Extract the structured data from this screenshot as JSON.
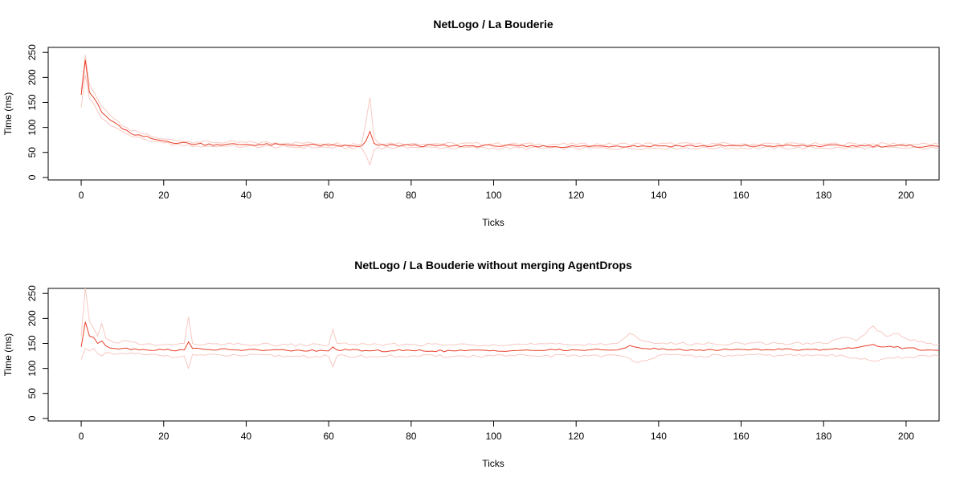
{
  "colors": {
    "mean_line": "#e8402a",
    "band_lines": "#f8c9c2",
    "axis": "#000000",
    "background": "#ffffff"
  },
  "chart_data": [
    {
      "type": "line",
      "title": "NetLogo / La Bouderie",
      "xlabel": "Ticks",
      "ylabel": "Time (ms)",
      "xlim": [
        -8,
        208
      ],
      "ylim": [
        -5,
        260
      ],
      "xticks": [
        0,
        20,
        40,
        60,
        80,
        100,
        120,
        140,
        160,
        180,
        200
      ],
      "yticks": [
        0,
        50,
        100,
        150,
        200,
        250
      ],
      "grid": false,
      "x_start": 0,
      "x_end": 208,
      "series": [
        {
          "role": "mean",
          "anchors": [
            [
              0,
              165
            ],
            [
              1,
              235
            ],
            [
              2,
              170
            ],
            [
              3,
              160
            ],
            [
              5,
              130
            ],
            [
              7,
              115
            ],
            [
              9,
              105
            ],
            [
              10,
              97
            ],
            [
              12,
              88
            ],
            [
              15,
              82
            ],
            [
              18,
              76
            ],
            [
              20,
              73
            ],
            [
              24,
              69
            ],
            [
              28,
              67
            ],
            [
              35,
              66
            ],
            [
              40,
              66
            ],
            [
              50,
              65
            ],
            [
              60,
              64
            ],
            [
              65,
              63
            ],
            [
              68,
              63
            ],
            [
              69,
              72
            ],
            [
              70,
              92
            ],
            [
              71,
              68
            ],
            [
              72,
              64
            ],
            [
              80,
              64
            ],
            [
              90,
              63
            ],
            [
              100,
              63
            ],
            [
              110,
              62
            ],
            [
              120,
              62
            ],
            [
              130,
              63
            ],
            [
              140,
              63
            ],
            [
              150,
              63
            ],
            [
              160,
              63
            ],
            [
              170,
              63
            ],
            [
              180,
              63
            ],
            [
              190,
              63
            ],
            [
              200,
              63
            ],
            [
              205,
              62
            ],
            [
              208,
              62
            ]
          ],
          "noise": 2.5
        },
        {
          "role": "upper",
          "anchors": [
            [
              0,
              175
            ],
            [
              1,
              245
            ],
            [
              2,
              185
            ],
            [
              3,
              172
            ],
            [
              5,
              142
            ],
            [
              7,
              125
            ],
            [
              9,
              112
            ],
            [
              10,
              103
            ],
            [
              12,
              93
            ],
            [
              15,
              87
            ],
            [
              18,
              80
            ],
            [
              20,
              77
            ],
            [
              24,
              73
            ],
            [
              28,
              71
            ],
            [
              35,
              70
            ],
            [
              40,
              70
            ],
            [
              50,
              69
            ],
            [
              60,
              68
            ],
            [
              68,
              67
            ],
            [
              69,
              110
            ],
            [
              70,
              160
            ],
            [
              71,
              80
            ],
            [
              72,
              69
            ],
            [
              80,
              68
            ],
            [
              100,
              67
            ],
            [
              120,
              66
            ],
            [
              140,
              67
            ],
            [
              160,
              67
            ],
            [
              180,
              67
            ],
            [
              200,
              67
            ],
            [
              208,
              66
            ]
          ],
          "noise": 3
        },
        {
          "role": "lower",
          "anchors": [
            [
              0,
              140
            ],
            [
              1,
              205
            ],
            [
              2,
              158
            ],
            [
              3,
              148
            ],
            [
              5,
              118
            ],
            [
              7,
              104
            ],
            [
              9,
              97
            ],
            [
              10,
              91
            ],
            [
              12,
              83
            ],
            [
              15,
              77
            ],
            [
              18,
              72
            ],
            [
              20,
              69
            ],
            [
              24,
              65
            ],
            [
              28,
              63
            ],
            [
              35,
              62
            ],
            [
              40,
              62
            ],
            [
              50,
              61
            ],
            [
              60,
              60
            ],
            [
              68,
              59
            ],
            [
              69,
              45
            ],
            [
              70,
              25
            ],
            [
              71,
              55
            ],
            [
              72,
              60
            ],
            [
              80,
              60
            ],
            [
              100,
              59
            ],
            [
              120,
              58
            ],
            [
              140,
              59
            ],
            [
              160,
              59
            ],
            [
              180,
              59
            ],
            [
              200,
              59
            ],
            [
              208,
              58
            ]
          ],
          "noise": 3
        }
      ]
    },
    {
      "type": "line",
      "title": "NetLogo / La Bouderie without merging AgentDrops",
      "xlabel": "Ticks",
      "ylabel": "Time (ms)",
      "xlim": [
        -8,
        208
      ],
      "ylim": [
        -5,
        260
      ],
      "xticks": [
        0,
        20,
        40,
        60,
        80,
        100,
        120,
        140,
        160,
        180,
        200
      ],
      "yticks": [
        0,
        50,
        100,
        150,
        200,
        250
      ],
      "grid": false,
      "x_start": 0,
      "x_end": 208,
      "series": [
        {
          "role": "mean",
          "anchors": [
            [
              0,
              143
            ],
            [
              1,
              193
            ],
            [
              2,
              165
            ],
            [
              3,
              162
            ],
            [
              4,
              150
            ],
            [
              5,
              155
            ],
            [
              6,
              145
            ],
            [
              8,
              140
            ],
            [
              10,
              140
            ],
            [
              15,
              138
            ],
            [
              20,
              137
            ],
            [
              25,
              137
            ],
            [
              26,
              153
            ],
            [
              27,
              140
            ],
            [
              30,
              138
            ],
            [
              40,
              137
            ],
            [
              50,
              136
            ],
            [
              60,
              135
            ],
            [
              61,
              143
            ],
            [
              62,
              137
            ],
            [
              70,
              135
            ],
            [
              80,
              136
            ],
            [
              90,
              135
            ],
            [
              100,
              136
            ],
            [
              110,
              136
            ],
            [
              120,
              137
            ],
            [
              130,
              137
            ],
            [
              133,
              146
            ],
            [
              135,
              142
            ],
            [
              140,
              138
            ],
            [
              150,
              137
            ],
            [
              160,
              138
            ],
            [
              170,
              138
            ],
            [
              180,
              138
            ],
            [
              185,
              140
            ],
            [
              190,
              145
            ],
            [
              192,
              148
            ],
            [
              195,
              143
            ],
            [
              200,
              141
            ],
            [
              205,
              137
            ],
            [
              208,
              136
            ]
          ],
          "noise": 2
        },
        {
          "role": "upper",
          "anchors": [
            [
              0,
              165
            ],
            [
              1,
              262
            ],
            [
              2,
              195
            ],
            [
              3,
              180
            ],
            [
              4,
              165
            ],
            [
              5,
              190
            ],
            [
              6,
              160
            ],
            [
              8,
              152
            ],
            [
              10,
              155
            ],
            [
              15,
              148
            ],
            [
              20,
              147
            ],
            [
              25,
              150
            ],
            [
              26,
              203
            ],
            [
              27,
              150
            ],
            [
              30,
              148
            ],
            [
              40,
              148
            ],
            [
              50,
              147
            ],
            [
              60,
              147
            ],
            [
              61,
              178
            ],
            [
              62,
              150
            ],
            [
              70,
              147
            ],
            [
              80,
              148
            ],
            [
              90,
              147
            ],
            [
              100,
              148
            ],
            [
              110,
              148
            ],
            [
              120,
              148
            ],
            [
              130,
              150
            ],
            [
              133,
              170
            ],
            [
              135,
              160
            ],
            [
              140,
              150
            ],
            [
              150,
              149
            ],
            [
              160,
              150
            ],
            [
              170,
              150
            ],
            [
              180,
              150
            ],
            [
              185,
              162
            ],
            [
              188,
              155
            ],
            [
              190,
              168
            ],
            [
              192,
              185
            ],
            [
              195,
              165
            ],
            [
              198,
              170
            ],
            [
              200,
              160
            ],
            [
              205,
              150
            ],
            [
              208,
              148
            ]
          ],
          "noise": 3
        },
        {
          "role": "lower",
          "anchors": [
            [
              0,
              118
            ],
            [
              1,
              140
            ],
            [
              2,
              135
            ],
            [
              3,
              140
            ],
            [
              4,
              130
            ],
            [
              5,
              125
            ],
            [
              6,
              132
            ],
            [
              8,
              128
            ],
            [
              10,
              130
            ],
            [
              15,
              128
            ],
            [
              20,
              125
            ],
            [
              25,
              125
            ],
            [
              26,
              100
            ],
            [
              27,
              128
            ],
            [
              30,
              126
            ],
            [
              40,
              126
            ],
            [
              50,
              125
            ],
            [
              60,
              124
            ],
            [
              61,
              103
            ],
            [
              62,
              125
            ],
            [
              70,
              124
            ],
            [
              80,
              125
            ],
            [
              90,
              124
            ],
            [
              100,
              125
            ],
            [
              110,
              125
            ],
            [
              120,
              126
            ],
            [
              130,
              126
            ],
            [
              133,
              120
            ],
            [
              135,
              112
            ],
            [
              140,
              126
            ],
            [
              150,
              125
            ],
            [
              160,
              126
            ],
            [
              170,
              126
            ],
            [
              180,
              126
            ],
            [
              185,
              125
            ],
            [
              190,
              120
            ],
            [
              192,
              115
            ],
            [
              195,
              120
            ],
            [
              200,
              122
            ],
            [
              205,
              125
            ],
            [
              208,
              124
            ]
          ],
          "noise": 3
        }
      ]
    }
  ]
}
